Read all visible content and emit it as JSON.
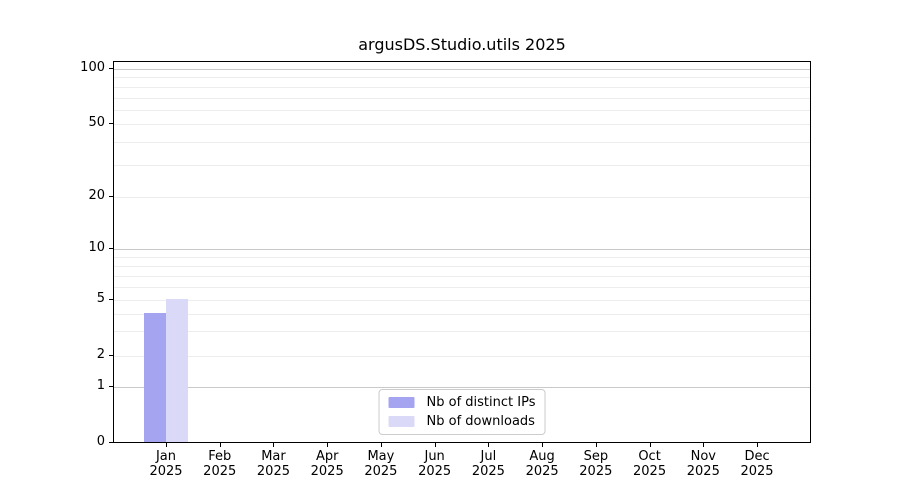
{
  "chart_data": {
    "type": "bar",
    "title": "argusDS.Studio.utils 2025",
    "x_tick_labels": [
      {
        "line1": "Jan",
        "line2": "2025"
      },
      {
        "line1": "Feb",
        "line2": "2025"
      },
      {
        "line1": "Mar",
        "line2": "2025"
      },
      {
        "line1": "Apr",
        "line2": "2025"
      },
      {
        "line1": "May",
        "line2": "2025"
      },
      {
        "line1": "Jun",
        "line2": "2025"
      },
      {
        "line1": "Jul",
        "line2": "2025"
      },
      {
        "line1": "Aug",
        "line2": "2025"
      },
      {
        "line1": "Sep",
        "line2": "2025"
      },
      {
        "line1": "Oct",
        "line2": "2025"
      },
      {
        "line1": "Nov",
        "line2": "2025"
      },
      {
        "line1": "Dec",
        "line2": "2025"
      }
    ],
    "categories": [
      "Jan 2025",
      "Feb 2025",
      "Mar 2025",
      "Apr 2025",
      "May 2025",
      "Jun 2025",
      "Jul 2025",
      "Aug 2025",
      "Sep 2025",
      "Oct 2025",
      "Nov 2025",
      "Dec 2025"
    ],
    "series": [
      {
        "name": "Nb of distinct IPs",
        "color": "#a4a4f0",
        "values": [
          4,
          0,
          0,
          0,
          0,
          0,
          0,
          0,
          0,
          0,
          0,
          0
        ]
      },
      {
        "name": "Nb of downloads",
        "color": "#dadaf8",
        "values": [
          5,
          0,
          0,
          0,
          0,
          0,
          0,
          0,
          0,
          0,
          0,
          0
        ]
      }
    ],
    "y_axis": {
      "scale": "log above 1, linear 0-1",
      "tick_values": [
        0,
        1,
        2,
        5,
        10,
        20,
        50,
        100
      ],
      "major_grid_values": [
        1,
        10,
        100
      ],
      "minor_grid_values": [
        2,
        3,
        4,
        5,
        6,
        7,
        8,
        9,
        20,
        30,
        40,
        50,
        60,
        70,
        80,
        90
      ],
      "ylim": [
        0,
        110
      ]
    },
    "legend_position": "lower center",
    "grid": true
  },
  "colors": {
    "grid_major": "#c9c9c9",
    "grid_minor": "#ededed",
    "axis_spine": "#000000",
    "text": "#000000",
    "legend_border": "#cccccc",
    "background": "#ffffff"
  }
}
